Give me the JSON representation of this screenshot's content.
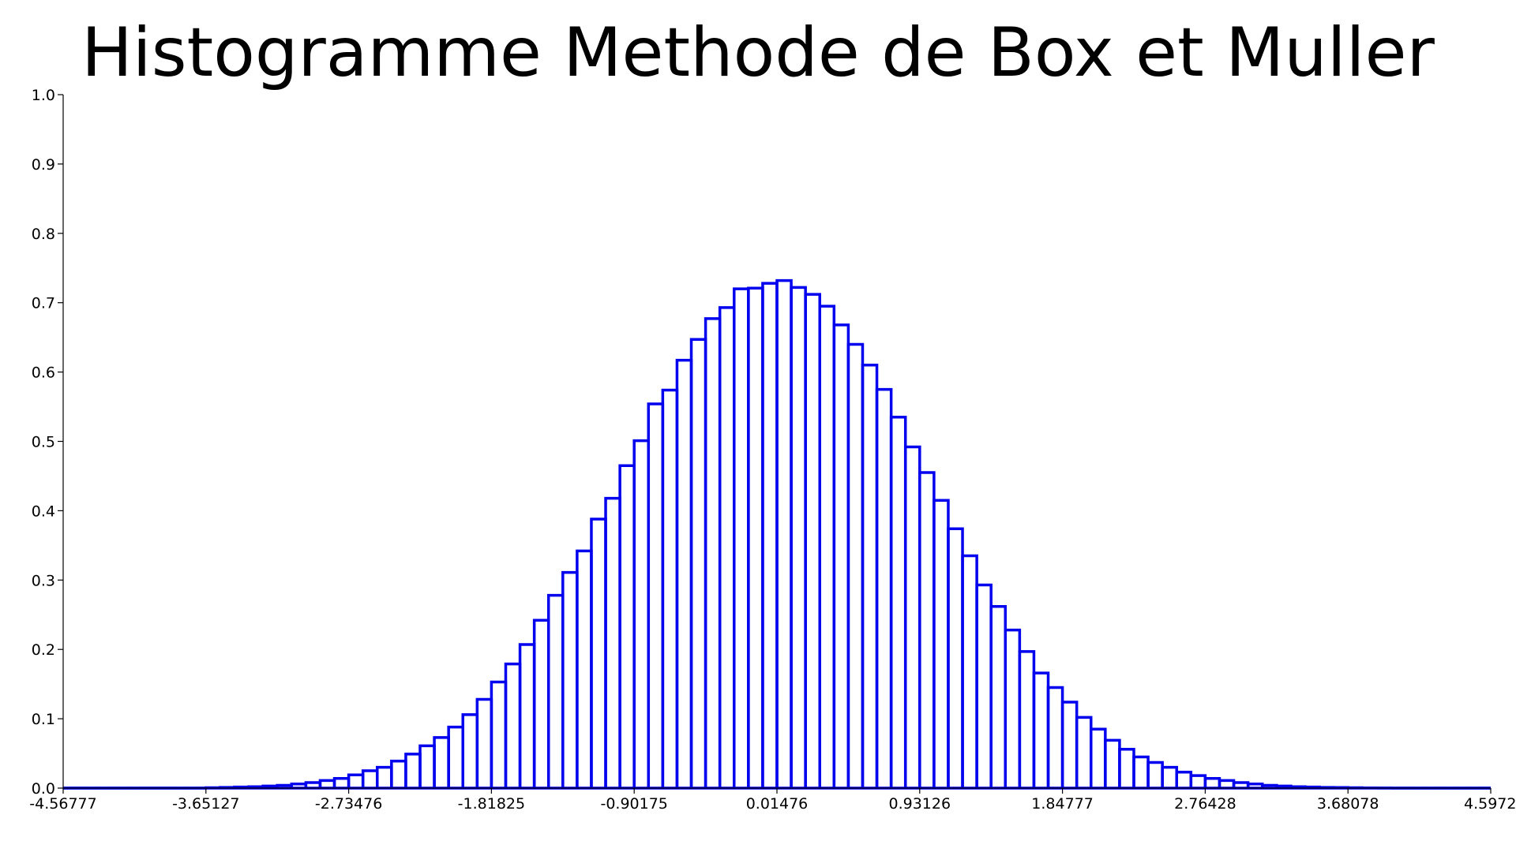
{
  "chart_data": {
    "type": "bar",
    "title": "Histogramme Methode de Box et Muller",
    "xlabel": "",
    "ylabel": "",
    "xlim": [
      -4.56777,
      4.59729
    ],
    "ylim": [
      0.0,
      1.0
    ],
    "grid": false,
    "bar_color": "#0000ee",
    "x_ticks": [
      "-4.56777",
      "-3.65127",
      "-2.73476",
      "-1.81825",
      "-0.90175",
      "0.01476",
      "0.93126",
      "1.84777",
      "2.76428",
      "3.68078",
      "4.59729"
    ],
    "y_ticks": [
      "0.0",
      "0.1",
      "0.2",
      "0.3",
      "0.4",
      "0.5",
      "0.6",
      "0.7",
      "0.8",
      "0.9",
      "1.0"
    ],
    "bin_width": 0.0916506,
    "values": [
      0.0,
      0.0,
      0.0,
      0.0,
      0.0,
      0.0,
      0.0,
      0.0,
      0.0,
      0.0,
      0.0005,
      0.001,
      0.0015,
      0.002,
      0.003,
      0.004,
      0.006,
      0.008,
      0.011,
      0.014,
      0.019,
      0.025,
      0.03,
      0.039,
      0.049,
      0.061,
      0.073,
      0.088,
      0.106,
      0.128,
      0.153,
      0.179,
      0.207,
      0.242,
      0.278,
      0.311,
      0.342,
      0.388,
      0.418,
      0.465,
      0.501,
      0.554,
      0.574,
      0.617,
      0.647,
      0.677,
      0.693,
      0.72,
      0.721,
      0.728,
      0.732,
      0.722,
      0.712,
      0.695,
      0.668,
      0.64,
      0.61,
      0.575,
      0.535,
      0.492,
      0.455,
      0.415,
      0.374,
      0.335,
      0.293,
      0.262,
      0.228,
      0.197,
      0.166,
      0.145,
      0.124,
      0.102,
      0.085,
      0.069,
      0.056,
      0.045,
      0.037,
      0.03,
      0.023,
      0.018,
      0.014,
      0.011,
      0.008,
      0.006,
      0.004,
      0.003,
      0.002,
      0.0015,
      0.001,
      0.0008,
      0.0005,
      0.0003,
      0.0002,
      0.0,
      0.0,
      0.0,
      0.0,
      0.0,
      0.0,
      0.0
    ]
  }
}
